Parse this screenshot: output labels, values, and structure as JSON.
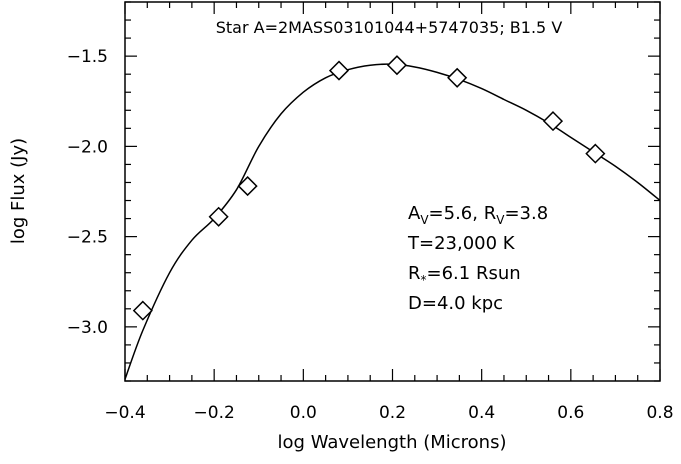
{
  "chart_data": {
    "type": "scatter",
    "title": "Star A=2MASS03101044+5747035; B1.5 V",
    "xlabel": "log Wavelength (Microns)",
    "ylabel": "log Flux (Jy)",
    "xlim": [
      -0.4,
      0.8
    ],
    "ylim": [
      -3.3,
      -1.2
    ],
    "x_ticks": [
      -0.4,
      -0.2,
      0.0,
      0.2,
      0.4,
      0.6,
      0.8
    ],
    "x_tick_labels": [
      "−0.4",
      "−0.2",
      "0.0",
      "0.2",
      "0.4",
      "0.6",
      "0.8"
    ],
    "y_ticks": [
      -3.0,
      -2.5,
      -2.0,
      -1.5
    ],
    "y_tick_labels": [
      "−3.0",
      "−2.5",
      "−2.0",
      "−1.5"
    ],
    "grid": false,
    "series": [
      {
        "kind": "points",
        "marker": "diamond-open",
        "x": [
          -0.36,
          -0.19,
          -0.125,
          0.08,
          0.21,
          0.345,
          0.56,
          0.655
        ],
        "y": [
          -2.91,
          -2.39,
          -2.22,
          -1.58,
          -1.55,
          -1.62,
          -1.86,
          -2.04
        ]
      },
      {
        "kind": "line",
        "x": [
          -0.4,
          -0.36,
          -0.3,
          -0.25,
          -0.2,
          -0.15,
          -0.1,
          -0.05,
          0.0,
          0.05,
          0.1,
          0.15,
          0.2,
          0.25,
          0.3,
          0.35,
          0.4,
          0.45,
          0.5,
          0.55,
          0.6,
          0.65,
          0.7,
          0.75,
          0.8
        ],
        "y": [
          -3.29,
          -3.02,
          -2.7,
          -2.52,
          -2.4,
          -2.24,
          -2.0,
          -1.82,
          -1.7,
          -1.62,
          -1.575,
          -1.55,
          -1.545,
          -1.56,
          -1.59,
          -1.63,
          -1.68,
          -1.74,
          -1.8,
          -1.87,
          -1.95,
          -2.03,
          -2.11,
          -2.2,
          -2.3
        ]
      }
    ],
    "annotations": [
      {
        "main": "A",
        "sub": "V",
        "rest": "=5.6, R",
        "sub2": "V",
        "rest2": "=3.8"
      },
      {
        "main": "T=23,000 K"
      },
      {
        "main": "R",
        "sub": "*",
        "rest": "=6.1 Rsun"
      },
      {
        "main": "D=4.0 kpc"
      }
    ]
  }
}
